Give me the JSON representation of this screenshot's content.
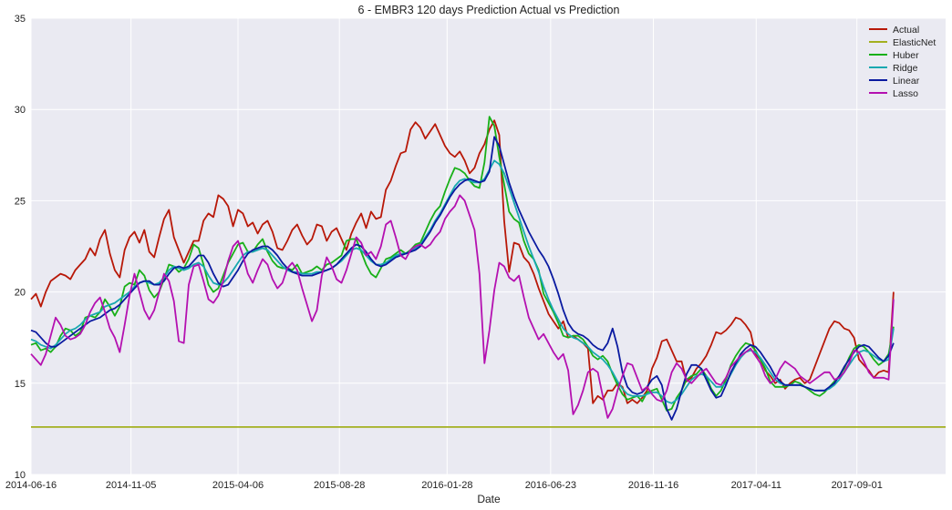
{
  "chart_data": {
    "type": "line",
    "title": "6 - EMBR3 120 days Prediction Actual vs Prediction",
    "xlabel": "Date",
    "ylabel": "",
    "ylim": [
      10,
      35
    ],
    "yticks": [
      10,
      15,
      20,
      25,
      30,
      35
    ],
    "grid": true,
    "legend_position": "top-right",
    "x_start": "2014-06-16",
    "x_end": "2018-01-05",
    "x_step_days": 7,
    "xticks": [
      "2014-06-16",
      "2014-11-05",
      "2015-04-06",
      "2015-08-28",
      "2016-01-28",
      "2016-06-23",
      "2016-11-16",
      "2017-04-11",
      "2017-09-01"
    ],
    "series": [
      {
        "name": "Actual",
        "color": "#b81808",
        "values": [
          19.6,
          19.9,
          19.2,
          20.0,
          20.6,
          20.8,
          21.0,
          20.9,
          20.7,
          21.2,
          21.5,
          21.8,
          22.4,
          22.0,
          22.9,
          23.4,
          22.1,
          21.2,
          20.8,
          22.3,
          23.0,
          23.3,
          22.7,
          23.4,
          22.2,
          21.9,
          23.0,
          24.0,
          24.5,
          23.0,
          22.3,
          21.6,
          22.2,
          22.8,
          22.8,
          23.9,
          24.3,
          24.1,
          25.3,
          25.1,
          24.7,
          23.6,
          24.5,
          24.3,
          23.6,
          23.8,
          23.2,
          23.7,
          23.9,
          23.3,
          22.4,
          22.3,
          22.8,
          23.4,
          23.7,
          23.1,
          22.6,
          22.9,
          23.7,
          23.6,
          22.8,
          23.3,
          23.5,
          22.9,
          22.3,
          23.2,
          23.8,
          24.3,
          23.5,
          24.4,
          24.0,
          24.1,
          25.6,
          26.1,
          26.9,
          27.6,
          27.7,
          28.9,
          29.3,
          29.0,
          28.4,
          28.8,
          29.2,
          28.6,
          28.0,
          27.6,
          27.4,
          27.7,
          27.2,
          26.5,
          26.8,
          27.6,
          28.1,
          28.9,
          29.4,
          28.6,
          23.9,
          21.1,
          22.7,
          22.6,
          21.9,
          21.6,
          21.0,
          20.2,
          19.5,
          18.8,
          18.4,
          18.0,
          18.4,
          17.5,
          17.6,
          17.4,
          17.2,
          16.9,
          13.9,
          14.3,
          14.1,
          14.6,
          14.6,
          15.0,
          14.8,
          13.9,
          14.1,
          13.9,
          14.2,
          14.6,
          15.8,
          16.4,
          17.3,
          17.4,
          16.8,
          16.2,
          16.2,
          15.1,
          15.3,
          15.8,
          16.1,
          16.5,
          17.1,
          17.8,
          17.7,
          17.9,
          18.2,
          18.6,
          18.5,
          18.2,
          17.8,
          16.6,
          16.3,
          15.7,
          15.4,
          15.0,
          15.2,
          14.7,
          15.0,
          15.2,
          15.3,
          15.0,
          15.2,
          15.9,
          16.6,
          17.3,
          18.0,
          18.4,
          18.3,
          18.0,
          17.9,
          17.5,
          16.3,
          16.0,
          15.7,
          15.3,
          15.6,
          15.7,
          15.6,
          20.0
        ]
      },
      {
        "name": "ElasticNet",
        "color": "#a3b020",
        "values": [
          12.6,
          12.6
        ]
      },
      {
        "name": "Huber",
        "color": "#18b018",
        "values": [
          17.1,
          17.2,
          16.8,
          16.9,
          16.7,
          17.0,
          17.6,
          18.0,
          17.9,
          17.6,
          17.8,
          18.6,
          18.7,
          18.6,
          18.9,
          19.6,
          19.2,
          18.7,
          19.2,
          20.3,
          20.5,
          20.4,
          21.2,
          20.9,
          20.1,
          19.7,
          20.0,
          20.7,
          21.5,
          21.4,
          21.1,
          21.3,
          21.8,
          22.6,
          22.4,
          21.5,
          20.4,
          20.0,
          20.2,
          20.9,
          21.6,
          22.1,
          22.6,
          22.7,
          22.2,
          22.2,
          22.6,
          22.9,
          22.2,
          21.7,
          21.4,
          21.3,
          21.3,
          21.2,
          21.5,
          21.0,
          21.1,
          21.2,
          21.4,
          21.2,
          21.5,
          21.6,
          21.8,
          22.0,
          22.8,
          22.9,
          22.9,
          22.2,
          21.5,
          21.0,
          20.8,
          21.3,
          21.8,
          21.9,
          22.1,
          22.3,
          22.1,
          22.3,
          22.6,
          22.7,
          23.3,
          23.9,
          24.4,
          24.7,
          25.5,
          26.2,
          26.8,
          26.7,
          26.5,
          26.1,
          25.8,
          25.7,
          27.1,
          29.6,
          29.1,
          27.4,
          25.9,
          24.4,
          24.0,
          23.8,
          22.8,
          22.1,
          21.8,
          21.2,
          19.9,
          19.4,
          18.9,
          18.3,
          17.6,
          17.5,
          17.6,
          17.6,
          17.4,
          17.0,
          16.5,
          16.3,
          16.5,
          16.2,
          15.5,
          14.9,
          14.4,
          14.1,
          14.2,
          14.3,
          14.0,
          14.5,
          14.6,
          14.7,
          14.1,
          13.5,
          13.6,
          14.2,
          14.6,
          15.2,
          15.4,
          15.5,
          15.8,
          15.4,
          14.7,
          14.3,
          14.6,
          15.2,
          16.0,
          16.5,
          16.9,
          17.2,
          17.1,
          16.8,
          16.3,
          15.8,
          15.1,
          14.8,
          14.8,
          14.8,
          14.9,
          15.1,
          15.0,
          14.8,
          14.6,
          14.4,
          14.3,
          14.5,
          14.8,
          15.1,
          15.4,
          15.8,
          16.4,
          16.9,
          17.1,
          17.0,
          16.7,
          16.3,
          16.0,
          16.2,
          16.6,
          18.1
        ]
      },
      {
        "name": "Ridge",
        "color": "#18a8b0",
        "values": [
          17.4,
          17.3,
          17.1,
          17.0,
          16.9,
          17.1,
          17.4,
          17.7,
          17.9,
          18.0,
          18.2,
          18.5,
          18.7,
          18.8,
          18.9,
          19.2,
          19.3,
          19.4,
          19.6,
          19.8,
          20.0,
          20.3,
          20.5,
          20.6,
          20.5,
          20.4,
          20.5,
          20.8,
          21.2,
          21.4,
          21.3,
          21.2,
          21.3,
          21.5,
          21.6,
          21.4,
          20.9,
          20.5,
          20.4,
          20.5,
          20.8,
          21.2,
          21.6,
          22.0,
          22.2,
          22.2,
          22.3,
          22.4,
          22.3,
          22.0,
          21.7,
          21.4,
          21.2,
          21.1,
          21.1,
          21.0,
          21.0,
          21.0,
          21.1,
          21.1,
          21.2,
          21.3,
          21.5,
          21.7,
          22.0,
          22.3,
          22.4,
          22.3,
          22.0,
          21.7,
          21.5,
          21.5,
          21.6,
          21.8,
          22.0,
          22.1,
          22.1,
          22.2,
          22.4,
          22.6,
          23.0,
          23.4,
          23.9,
          24.3,
          24.8,
          25.3,
          25.8,
          26.1,
          26.2,
          26.1,
          26.0,
          26.0,
          26.2,
          26.7,
          27.2,
          27.0,
          26.5,
          25.7,
          24.9,
          24.1,
          23.3,
          22.5,
          21.8,
          21.1,
          20.3,
          19.6,
          19.0,
          18.5,
          18.0,
          17.7,
          17.5,
          17.4,
          17.2,
          17.0,
          16.7,
          16.5,
          16.3,
          16.0,
          15.6,
          15.1,
          14.7,
          14.4,
          14.3,
          14.3,
          14.3,
          14.4,
          14.5,
          14.5,
          14.3,
          14.0,
          13.9,
          14.1,
          14.4,
          14.8,
          15.2,
          15.4,
          15.5,
          15.4,
          15.1,
          14.8,
          14.8,
          15.0,
          15.5,
          16.0,
          16.4,
          16.7,
          16.8,
          16.7,
          16.4,
          16.0,
          15.6,
          15.2,
          15.0,
          14.9,
          14.9,
          14.9,
          14.9,
          14.8,
          14.7,
          14.6,
          14.6,
          14.6,
          14.7,
          14.9,
          15.2,
          15.6,
          16.0,
          16.4,
          16.7,
          16.8,
          16.7,
          16.5,
          16.3,
          16.2,
          16.3,
          18.0
        ]
      },
      {
        "name": "Linear",
        "color": "#0a1aa0",
        "values": [
          17.9,
          17.8,
          17.5,
          17.2,
          17.0,
          17.0,
          17.2,
          17.4,
          17.6,
          17.8,
          18.0,
          18.2,
          18.4,
          18.5,
          18.6,
          18.8,
          19.0,
          19.1,
          19.3,
          19.6,
          19.9,
          20.2,
          20.5,
          20.6,
          20.6,
          20.4,
          20.4,
          20.6,
          21.0,
          21.3,
          21.4,
          21.3,
          21.4,
          21.7,
          22.0,
          22.0,
          21.6,
          21.0,
          20.5,
          20.3,
          20.4,
          20.8,
          21.2,
          21.7,
          22.1,
          22.3,
          22.4,
          22.5,
          22.5,
          22.3,
          22.0,
          21.6,
          21.3,
          21.1,
          21.0,
          20.9,
          20.9,
          20.9,
          21.0,
          21.1,
          21.2,
          21.3,
          21.5,
          21.8,
          22.1,
          22.4,
          22.6,
          22.5,
          22.2,
          21.8,
          21.5,
          21.4,
          21.5,
          21.7,
          21.9,
          22.0,
          22.1,
          22.2,
          22.3,
          22.5,
          22.9,
          23.3,
          23.8,
          24.2,
          24.7,
          25.2,
          25.6,
          25.9,
          26.1,
          26.2,
          26.1,
          26.0,
          26.1,
          26.6,
          28.5,
          28.0,
          27.0,
          26.0,
          25.2,
          24.5,
          23.9,
          23.3,
          22.8,
          22.3,
          21.9,
          21.4,
          20.7,
          19.9,
          19.0,
          18.3,
          17.9,
          17.7,
          17.6,
          17.4,
          17.1,
          16.9,
          16.8,
          17.2,
          18.0,
          17.0,
          15.6,
          14.8,
          14.5,
          14.4,
          14.5,
          14.8,
          15.2,
          15.4,
          14.9,
          13.6,
          13.0,
          13.6,
          14.6,
          15.5,
          16.0,
          16.0,
          15.8,
          15.2,
          14.6,
          14.2,
          14.3,
          14.9,
          15.6,
          16.1,
          16.6,
          16.9,
          17.1,
          17.0,
          16.7,
          16.3,
          15.9,
          15.4,
          15.1,
          14.9,
          14.9,
          14.9,
          14.9,
          14.8,
          14.7,
          14.6,
          14.6,
          14.6,
          14.8,
          15.0,
          15.4,
          15.9,
          16.3,
          16.7,
          17.0,
          17.1,
          17.0,
          16.7,
          16.4,
          16.2,
          16.5,
          17.2
        ]
      },
      {
        "name": "Lasso",
        "color": "#b410b0",
        "values": [
          16.6,
          16.3,
          16.0,
          16.6,
          17.6,
          18.6,
          18.2,
          17.6,
          17.4,
          17.5,
          17.7,
          18.2,
          18.9,
          19.4,
          19.7,
          18.9,
          18.0,
          17.5,
          16.7,
          18.2,
          19.8,
          21.0,
          20.0,
          19.0,
          18.5,
          19.0,
          20.0,
          21.0,
          20.6,
          19.5,
          17.3,
          17.2,
          20.4,
          21.4,
          21.5,
          20.6,
          19.6,
          19.4,
          19.8,
          20.6,
          21.7,
          22.5,
          22.8,
          22.0,
          21.0,
          20.5,
          21.2,
          21.8,
          21.5,
          20.7,
          20.2,
          20.5,
          21.3,
          21.6,
          21.2,
          20.2,
          19.3,
          18.4,
          19.0,
          20.9,
          21.9,
          21.4,
          20.7,
          20.5,
          21.2,
          22.1,
          23.0,
          22.7,
          22.0,
          22.2,
          21.8,
          22.5,
          23.7,
          23.9,
          23.0,
          22.0,
          21.8,
          22.3,
          22.5,
          22.6,
          22.4,
          22.6,
          23.0,
          23.3,
          24.0,
          24.4,
          24.7,
          25.3,
          25.0,
          24.2,
          23.4,
          21.0,
          16.1,
          17.9,
          20.1,
          21.6,
          21.4,
          20.8,
          20.6,
          20.9,
          19.7,
          18.6,
          18.0,
          17.4,
          17.7,
          17.2,
          16.7,
          16.3,
          16.6,
          15.7,
          13.3,
          13.8,
          14.6,
          15.6,
          15.8,
          15.6,
          14.3,
          13.1,
          13.6,
          14.6,
          15.4,
          16.1,
          16.0,
          15.3,
          14.6,
          14.8,
          14.4,
          14.1,
          14.0,
          14.6,
          15.6,
          16.1,
          15.8,
          15.2,
          15.0,
          15.3,
          15.6,
          15.8,
          15.4,
          15.0,
          14.9,
          15.3,
          15.9,
          16.2,
          16.5,
          16.7,
          16.9,
          16.5,
          16.1,
          15.4,
          15.0,
          15.2,
          15.8,
          16.2,
          16.0,
          15.8,
          15.4,
          15.2,
          15.0,
          15.2,
          15.4,
          15.6,
          15.6,
          15.2,
          15.3,
          15.6,
          16.1,
          16.8,
          16.7,
          16.2,
          15.6,
          15.3,
          15.3,
          15.3,
          15.2,
          19.6
        ]
      }
    ]
  }
}
